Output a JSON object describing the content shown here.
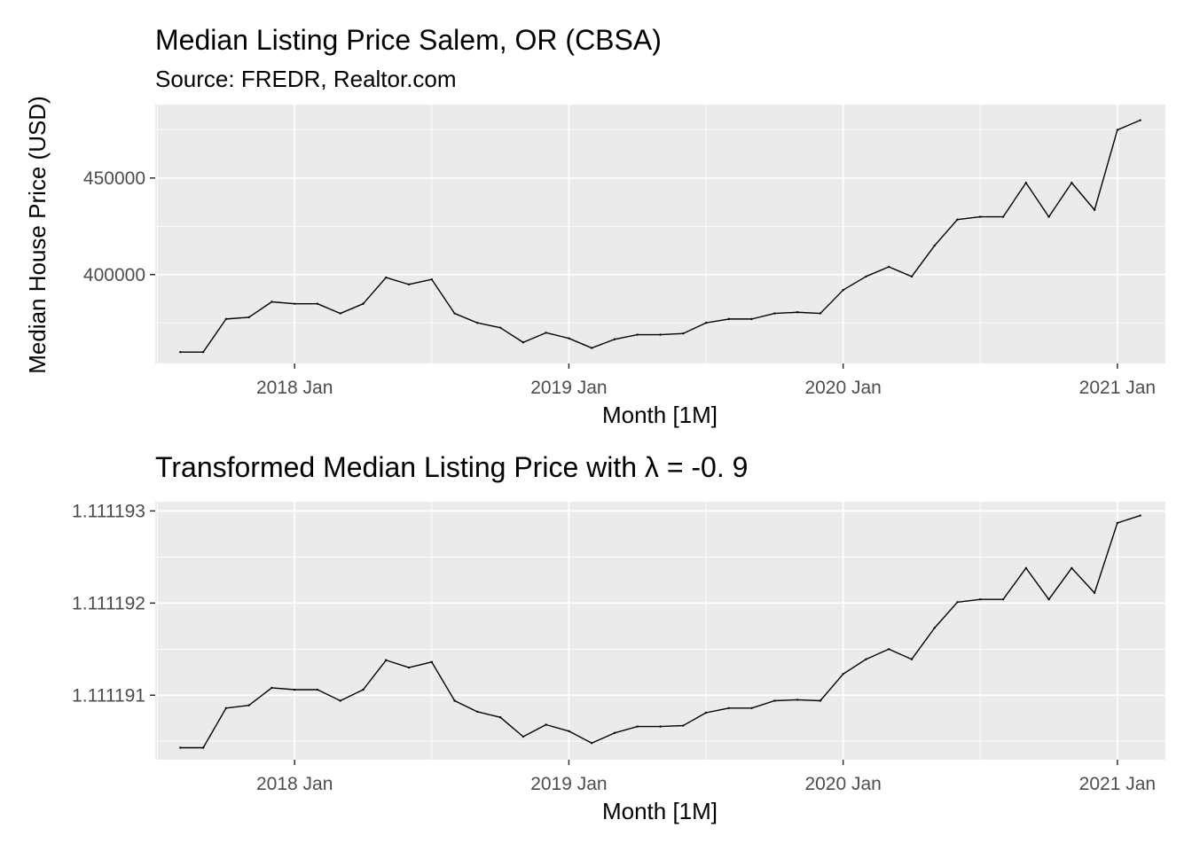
{
  "chart_data": [
    {
      "type": "line",
      "title": "Median Listing Price Salem, OR (CBSA)",
      "subtitle": "Source: FREDR, Realtor.com",
      "xlabel": "Month [1M]",
      "ylabel": "Median House Price (USD)",
      "x_ticks": [
        "2018 Jan",
        "2019 Jan",
        "2020 Jan",
        "2021 Jan"
      ],
      "y_ticks": [
        "400000",
        "450000"
      ],
      "x_start": "2017 Aug",
      "x_end": "2021 Feb",
      "ylim": [
        354000,
        488000
      ],
      "grid": true,
      "legend": "none",
      "x": [
        "2017-08",
        "2017-09",
        "2017-10",
        "2017-11",
        "2017-12",
        "2018-01",
        "2018-02",
        "2018-03",
        "2018-04",
        "2018-05",
        "2018-06",
        "2018-07",
        "2018-08",
        "2018-09",
        "2018-10",
        "2018-11",
        "2018-12",
        "2019-01",
        "2019-02",
        "2019-03",
        "2019-04",
        "2019-05",
        "2019-06",
        "2019-07",
        "2019-08",
        "2019-09",
        "2019-10",
        "2019-11",
        "2019-12",
        "2020-01",
        "2020-02",
        "2020-03",
        "2020-04",
        "2020-05",
        "2020-06",
        "2020-07",
        "2020-08",
        "2020-09",
        "2020-10",
        "2020-11",
        "2020-12",
        "2021-01",
        "2021-02"
      ],
      "values": [
        359900,
        359900,
        377000,
        377900,
        385900,
        384900,
        384900,
        379900,
        384900,
        398500,
        394900,
        397500,
        379900,
        375000,
        372500,
        364900,
        369900,
        367000,
        362000,
        366500,
        368900,
        368900,
        369500,
        375000,
        377000,
        377000,
        379900,
        380500,
        379900,
        392000,
        399000,
        404000,
        399000,
        415000,
        428500,
        429900,
        429900,
        447500,
        429900,
        447500,
        433500,
        474900,
        479900
      ]
    },
    {
      "type": "line",
      "title": "Transformed Median Listing Price with λ = -0. 9",
      "xlabel": "Month [1M]",
      "ylabel": "",
      "x_ticks": [
        "2018 Jan",
        "2019 Jan",
        "2020 Jan",
        "2021 Jan"
      ],
      "y_ticks": [
        "1.111191",
        "1.111192",
        "1.111193"
      ],
      "lambda": -0.9,
      "x_start": "2017 Aug",
      "x_end": "2021 Feb",
      "ylim": [
        1.1111903,
        1.1111931
      ],
      "grid": true,
      "legend": "none",
      "x": [
        "2017-08",
        "2017-09",
        "2017-10",
        "2017-11",
        "2017-12",
        "2018-01",
        "2018-02",
        "2018-03",
        "2018-04",
        "2018-05",
        "2018-06",
        "2018-07",
        "2018-08",
        "2018-09",
        "2018-10",
        "2018-11",
        "2018-12",
        "2019-01",
        "2019-02",
        "2019-03",
        "2019-04",
        "2019-05",
        "2019-06",
        "2019-07",
        "2019-08",
        "2019-09",
        "2019-10",
        "2019-11",
        "2019-12",
        "2020-01",
        "2020-02",
        "2020-03",
        "2020-04",
        "2020-05",
        "2020-06",
        "2020-07",
        "2020-08",
        "2020-09",
        "2020-10",
        "2020-11",
        "2020-12",
        "2021-01",
        "2021-02"
      ],
      "values": [
        1.11119043,
        1.11119043,
        1.11119086,
        1.11119089,
        1.11119108,
        1.11119106,
        1.11119106,
        1.11119094,
        1.11119106,
        1.11119138,
        1.1111913,
        1.11119136,
        1.11119094,
        1.11119082,
        1.11119076,
        1.11119055,
        1.11119068,
        1.11119061,
        1.11119048,
        1.11119059,
        1.11119066,
        1.11119066,
        1.11119067,
        1.11119081,
        1.11119086,
        1.11119086,
        1.11119094,
        1.11119095,
        1.11119094,
        1.11119123,
        1.11119139,
        1.1111915,
        1.11119139,
        1.11119173,
        1.11119201,
        1.11119204,
        1.11119204,
        1.11119238,
        1.11119204,
        1.11119238,
        1.11119211,
        1.11119287,
        1.11119295
      ]
    }
  ]
}
